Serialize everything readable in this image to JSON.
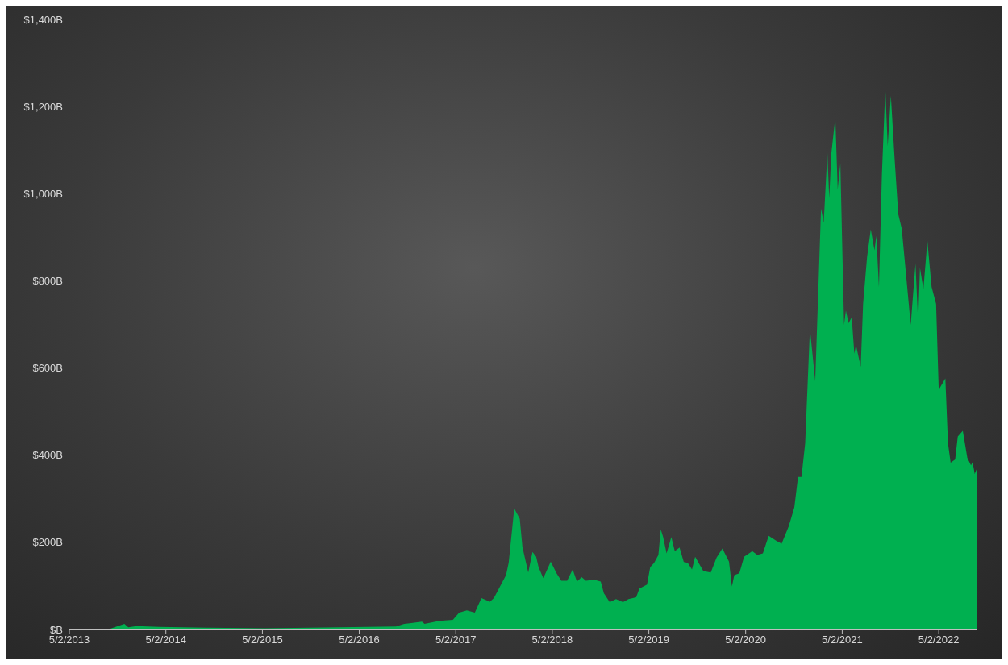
{
  "chart_data": {
    "type": "area",
    "x": [
      "2013-05-02",
      "2013-10-04",
      "2013-11-26",
      "2013-12-11",
      "2014-01-11",
      "2014-04-06",
      "2014-10-09",
      "2015-05-12",
      "2016-02-15",
      "2016-09-18",
      "2016-10-19",
      "2016-12-25",
      "2017-01-04",
      "2017-03-01",
      "2017-04-21",
      "2017-05-15",
      "2017-06-13",
      "2017-07-13",
      "2017-08-07",
      "2017-09-08",
      "2017-09-23",
      "2017-10-14",
      "2017-11-08",
      "2017-11-18",
      "2017-12-09",
      "2017-12-30",
      "2018-01-09",
      "2018-01-31",
      "2018-02-16",
      "2018-03-02",
      "2018-03-11",
      "2018-03-29",
      "2018-04-26",
      "2018-05-18",
      "2018-06-05",
      "2018-06-27",
      "2018-07-18",
      "2018-08-03",
      "2018-08-21",
      "2018-09-06",
      "2018-10-07",
      "2018-11-01",
      "2018-11-13",
      "2018-12-05",
      "2018-12-29",
      "2019-01-24",
      "2019-02-14",
      "2019-03-15",
      "2019-03-27",
      "2019-04-25",
      "2019-05-07",
      "2019-05-22",
      "2019-06-07",
      "2019-06-16",
      "2019-06-25",
      "2019-07-08",
      "2019-07-26",
      "2019-08-08",
      "2019-08-26",
      "2019-09-11",
      "2019-09-26",
      "2019-10-12",
      "2019-10-24",
      "2019-11-24",
      "2019-12-22",
      "2020-01-13",
      "2020-02-04",
      "2020-02-29",
      "2020-03-11",
      "2020-03-20",
      "2020-04-08",
      "2020-04-26",
      "2020-05-27",
      "2020-06-15",
      "2020-07-06",
      "2020-07-28",
      "2020-08-25",
      "2020-09-15",
      "2020-10-12",
      "2020-11-02",
      "2020-11-16",
      "2020-11-29",
      "2020-12-13",
      "2020-12-31",
      "2021-01-20",
      "2021-02-11",
      "2021-02-21",
      "2021-03-07",
      "2021-03-14",
      "2021-03-22",
      "2021-04-06",
      "2021-04-15",
      "2021-04-25",
      "2021-05-09",
      "2021-05-16",
      "2021-05-26",
      "2021-06-07",
      "2021-06-17",
      "2021-06-23",
      "2021-07-11",
      "2021-07-20",
      "2021-08-04",
      "2021-08-18",
      "2021-09-01",
      "2021-09-08",
      "2021-09-18",
      "2021-09-29",
      "2021-10-12",
      "2021-10-21",
      "2021-11-02",
      "2021-11-16",
      "2021-11-30",
      "2021-12-13",
      "2021-12-27",
      "2022-01-16",
      "2022-02-03",
      "2022-02-13",
      "2022-02-20",
      "2022-03-05",
      "2022-03-20",
      "2022-04-05",
      "2022-04-22",
      "2022-05-02",
      "2022-05-27",
      "2022-06-06",
      "2022-06-16",
      "2022-07-03",
      "2022-07-13",
      "2022-08-01",
      "2022-08-18",
      "2022-09-01",
      "2022-09-07",
      "2022-09-15",
      "2022-09-25"
    ],
    "series": [
      {
        "color": "#00b050",
        "values": [
          2,
          2,
          13,
          5,
          8,
          6,
          4,
          3,
          5,
          7,
          13,
          18,
          13,
          20,
          22,
          39,
          44,
          39,
          72,
          64,
          72,
          96,
          125,
          153,
          278,
          254,
          189,
          131,
          178,
          167,
          143,
          118,
          156,
          129,
          112,
          112,
          138,
          110,
          120,
          112,
          114,
          110,
          83,
          63,
          70,
          63,
          70,
          74,
          94,
          103,
          143,
          153,
          171,
          230,
          212,
          175,
          212,
          180,
          188,
          155,
          153,
          138,
          167,
          134,
          131,
          165,
          186,
          156,
          99,
          125,
          129,
          167,
          180,
          171,
          175,
          215,
          204,
          197,
          237,
          280,
          350,
          350,
          427,
          690,
          570,
          966,
          933,
          1093,
          990,
          1093,
          1175,
          1010,
          1069,
          699,
          732,
          703,
          716,
          633,
          653,
          603,
          747,
          855,
          918,
          870,
          903,
          786,
          1043,
          1242,
          1109,
          1225,
          1082,
          953,
          920,
          830,
          699,
          839,
          706,
          830,
          781,
          892,
          786,
          747,
          550,
          576,
          427,
          383,
          390,
          443,
          456,
          394,
          377,
          384,
          357,
          372
        ]
      }
    ],
    "xlim": [
      "2013-05-02",
      "2022-09-25"
    ],
    "xticks": [
      {
        "value": "2013-05-02",
        "label": "5/2/2013"
      },
      {
        "value": "2014-05-02",
        "label": "5/2/2014"
      },
      {
        "value": "2015-05-02",
        "label": "5/2/2015"
      },
      {
        "value": "2016-05-02",
        "label": "5/2/2016"
      },
      {
        "value": "2017-05-02",
        "label": "5/2/2017"
      },
      {
        "value": "2018-05-02",
        "label": "5/2/2018"
      },
      {
        "value": "2019-05-02",
        "label": "5/2/2019"
      },
      {
        "value": "2020-05-02",
        "label": "5/2/2020"
      },
      {
        "value": "2021-05-02",
        "label": "5/2/2021"
      },
      {
        "value": "2022-05-02",
        "label": "5/2/2022"
      }
    ],
    "ylim": [
      0,
      1400
    ],
    "yticks": [
      {
        "value": 0,
        "label": "$B"
      },
      {
        "value": 200,
        "label": "$200B"
      },
      {
        "value": 400,
        "label": "$400B"
      },
      {
        "value": 600,
        "label": "$600B"
      },
      {
        "value": 800,
        "label": "$800B"
      },
      {
        "value": 1000,
        "label": "$1,000B"
      },
      {
        "value": 1200,
        "label": "$1,200B"
      },
      {
        "value": 1400,
        "label": "$1,400B"
      }
    ]
  }
}
